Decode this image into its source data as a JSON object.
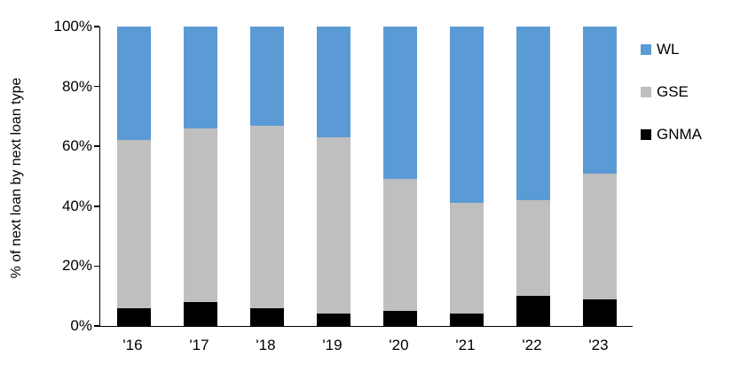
{
  "chart_data": {
    "type": "bar",
    "stacked": true,
    "title": "",
    "ylabel": "% of next loan by next loan type",
    "xlabel": "",
    "ylim": [
      0,
      100
    ],
    "grid": false,
    "legend_position": "right",
    "categories": [
      "'16",
      "'17",
      "'18",
      "'19",
      "'20",
      "'21",
      "'22",
      "'23"
    ],
    "series": [
      {
        "name": "WL",
        "color": "#5B9BD5",
        "values": [
          38,
          34,
          33,
          37,
          51,
          59,
          58,
          49
        ]
      },
      {
        "name": "GSE",
        "color": "#BFBFBF",
        "values": [
          56,
          58,
          61,
          59,
          44,
          37,
          32,
          42
        ]
      },
      {
        "name": "GNMA",
        "color": "#000000",
        "values": [
          6,
          8,
          6,
          4,
          5,
          4,
          10,
          9
        ]
      }
    ],
    "ytick_labels": [
      "0%",
      "20%",
      "40%",
      "60%",
      "80%",
      "100%"
    ],
    "ytick_values": [
      0,
      20,
      40,
      60,
      80,
      100
    ]
  }
}
